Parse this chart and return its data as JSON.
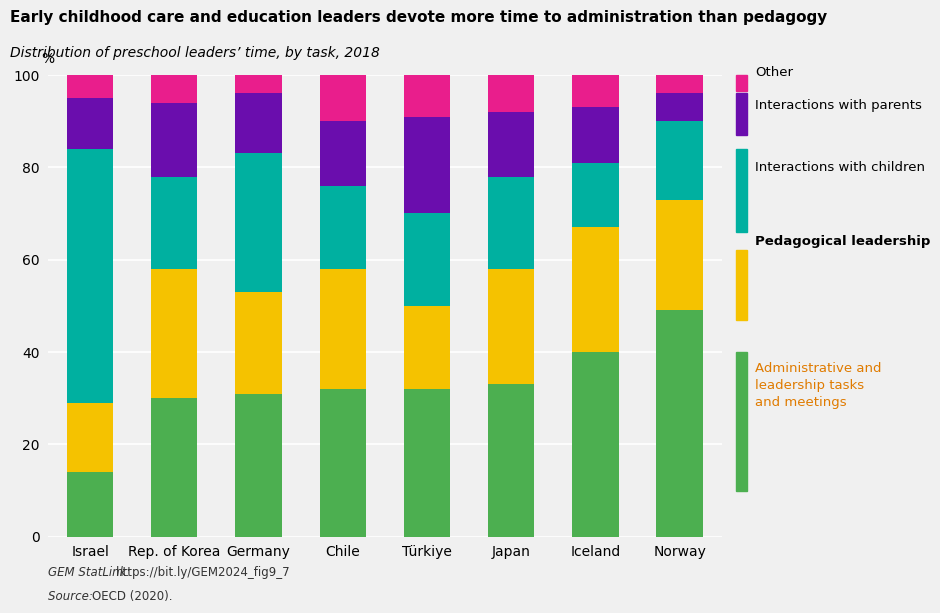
{
  "title": "Early childhood care and education leaders devote more time to administration than pedagogy",
  "subtitle": "Distribution of preschool leaders’ time, by task, 2018",
  "categories": [
    "Israel",
    "Rep. of Korea",
    "Germany",
    "Chile",
    "Türkiye",
    "Japan",
    "Iceland",
    "Norway"
  ],
  "segments": {
    "Administrative and leadership tasks and meetings": [
      14,
      30,
      31,
      32,
      32,
      33,
      40,
      49
    ],
    "Pedagogical leadership": [
      15,
      28,
      22,
      26,
      18,
      25,
      27,
      24
    ],
    "Interactions with children": [
      55,
      20,
      30,
      18,
      20,
      20,
      14,
      17
    ],
    "Interactions with parents": [
      11,
      16,
      13,
      14,
      21,
      14,
      12,
      6
    ],
    "Other": [
      5,
      6,
      4,
      10,
      9,
      8,
      7,
      4
    ]
  },
  "colors": {
    "Administrative and leadership tasks and meetings": "#4caf50",
    "Pedagogical leadership": "#f5c200",
    "Interactions with children": "#00b0a0",
    "Interactions with parents": "#6a0dad",
    "Other": "#e91e8c"
  },
  "segment_order": [
    "Administrative and leadership tasks and meetings",
    "Pedagogical leadership",
    "Interactions with children",
    "Interactions with parents",
    "Other"
  ],
  "legend_order": [
    "Other",
    "Interactions with parents",
    "Interactions with children",
    "Pedagogical leadership",
    "Administrative and leadership tasks and meetings"
  ],
  "legend_labels": {
    "Other": "Other",
    "Interactions with parents": "Interactions with parents",
    "Interactions with children": "Interactions with children",
    "Pedagogical leadership": "Pedagogical leadership",
    "Administrative and leadership tasks and meetings": "Administrative and\nleadership tasks\nand meetings"
  },
  "legend_bold": {
    "Pedagogical leadership": true
  },
  "legend_text_colors": {
    "Administrative and leadership tasks and meetings": "#e07b00",
    "Pedagogical leadership": "#000000",
    "Interactions with children": "#000000",
    "Interactions with parents": "#000000",
    "Other": "#000000"
  },
  "ylabel": "%",
  "ylim": [
    0,
    100
  ],
  "yticks": [
    0,
    20,
    40,
    60,
    80,
    100
  ],
  "footnote_italic": "GEM StatLink: ",
  "footnote_url": "https://bit.ly/GEM2024_fig9_7",
  "footnote_source_italic": "Source: ",
  "footnote_source_normal": "OECD (2020).",
  "background_color": "#f0f0f0",
  "bar_width": 0.55
}
